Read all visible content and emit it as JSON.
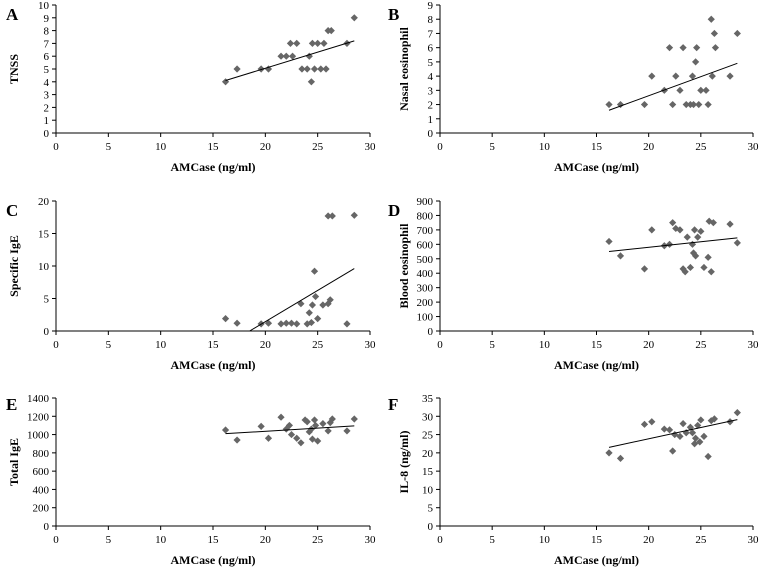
{
  "chart_data": [
    {
      "type": "scatter",
      "panel_letter": "A",
      "xlabel": "AMCase (ng/ml)",
      "ylabel": "TNSS",
      "xlim": [
        0,
        30
      ],
      "ylim": [
        0,
        10
      ],
      "xticks": [
        0,
        5,
        10,
        15,
        20,
        25,
        30
      ],
      "yticks": [
        0,
        1,
        2,
        3,
        4,
        5,
        6,
        7,
        8,
        9,
        10
      ],
      "grid": false,
      "marker_color": "#666666",
      "trendline": {
        "x": [
          16.2,
          28.5
        ],
        "y": [
          4.1,
          7.2
        ]
      },
      "points": [
        {
          "x": 16.2,
          "y": 4
        },
        {
          "x": 17.3,
          "y": 5
        },
        {
          "x": 19.6,
          "y": 5
        },
        {
          "x": 20.3,
          "y": 5
        },
        {
          "x": 21.5,
          "y": 6
        },
        {
          "x": 22.0,
          "y": 6
        },
        {
          "x": 22.4,
          "y": 7
        },
        {
          "x": 22.6,
          "y": 6
        },
        {
          "x": 23.0,
          "y": 7
        },
        {
          "x": 23.5,
          "y": 5
        },
        {
          "x": 24.0,
          "y": 5
        },
        {
          "x": 24.2,
          "y": 6
        },
        {
          "x": 24.4,
          "y": 4
        },
        {
          "x": 24.5,
          "y": 7
        },
        {
          "x": 24.7,
          "y": 5
        },
        {
          "x": 25.0,
          "y": 7
        },
        {
          "x": 25.3,
          "y": 5
        },
        {
          "x": 25.6,
          "y": 7
        },
        {
          "x": 25.8,
          "y": 5
        },
        {
          "x": 26.0,
          "y": 8
        },
        {
          "x": 26.3,
          "y": 8
        },
        {
          "x": 27.8,
          "y": 7
        },
        {
          "x": 28.5,
          "y": 9
        }
      ]
    },
    {
      "type": "scatter",
      "panel_letter": "B",
      "xlabel": "AMCase (ng/ml)",
      "ylabel": "Nasal eosinophil",
      "xlim": [
        0,
        30
      ],
      "ylim": [
        0,
        9
      ],
      "xticks": [
        0,
        5,
        10,
        15,
        20,
        25,
        30
      ],
      "yticks": [
        0,
        1,
        2,
        3,
        4,
        5,
        6,
        7,
        8,
        9
      ],
      "grid": false,
      "marker_color": "#666666",
      "trendline": {
        "x": [
          16.2,
          28.5
        ],
        "y": [
          1.6,
          4.9
        ]
      },
      "points": [
        {
          "x": 16.2,
          "y": 2
        },
        {
          "x": 17.3,
          "y": 2
        },
        {
          "x": 19.6,
          "y": 2
        },
        {
          "x": 20.3,
          "y": 4
        },
        {
          "x": 21.5,
          "y": 3
        },
        {
          "x": 22.0,
          "y": 6
        },
        {
          "x": 22.3,
          "y": 2
        },
        {
          "x": 22.6,
          "y": 4
        },
        {
          "x": 23.0,
          "y": 3
        },
        {
          "x": 23.3,
          "y": 6
        },
        {
          "x": 23.6,
          "y": 2
        },
        {
          "x": 24.0,
          "y": 2
        },
        {
          "x": 24.2,
          "y": 4
        },
        {
          "x": 24.3,
          "y": 2
        },
        {
          "x": 24.5,
          "y": 5
        },
        {
          "x": 24.6,
          "y": 6
        },
        {
          "x": 24.8,
          "y": 2
        },
        {
          "x": 25.0,
          "y": 3
        },
        {
          "x": 25.5,
          "y": 3
        },
        {
          "x": 25.7,
          "y": 2
        },
        {
          "x": 26.0,
          "y": 8
        },
        {
          "x": 26.1,
          "y": 4
        },
        {
          "x": 26.3,
          "y": 7
        },
        {
          "x": 26.4,
          "y": 6
        },
        {
          "x": 27.8,
          "y": 4
        },
        {
          "x": 28.5,
          "y": 7
        }
      ]
    },
    {
      "type": "scatter",
      "panel_letter": "C",
      "xlabel": "AMCase (ng/ml)",
      "ylabel": "Specific IgE",
      "xlim": [
        0,
        30
      ],
      "ylim": [
        0,
        20
      ],
      "xticks": [
        0,
        5,
        10,
        15,
        20,
        25,
        30
      ],
      "yticks": [
        0,
        5,
        10,
        15,
        20
      ],
      "grid": false,
      "marker_color": "#666666",
      "trendline": {
        "x": [
          18.5,
          28.5
        ],
        "y": [
          0,
          9.6
        ]
      },
      "points": [
        {
          "x": 16.2,
          "y": 1.9
        },
        {
          "x": 17.3,
          "y": 1.2
        },
        {
          "x": 19.6,
          "y": 1.1
        },
        {
          "x": 20.3,
          "y": 1.2
        },
        {
          "x": 21.5,
          "y": 1.1
        },
        {
          "x": 22.0,
          "y": 1.2
        },
        {
          "x": 22.5,
          "y": 1.2
        },
        {
          "x": 23.0,
          "y": 1.1
        },
        {
          "x": 23.4,
          "y": 4.2
        },
        {
          "x": 24.0,
          "y": 1.1
        },
        {
          "x": 24.2,
          "y": 2.8
        },
        {
          "x": 24.4,
          "y": 1.3
        },
        {
          "x": 24.5,
          "y": 4.0
        },
        {
          "x": 24.7,
          "y": 9.2
        },
        {
          "x": 24.8,
          "y": 5.3
        },
        {
          "x": 25.0,
          "y": 1.9
        },
        {
          "x": 25.5,
          "y": 4.0
        },
        {
          "x": 26.0,
          "y": 4.2
        },
        {
          "x": 26.2,
          "y": 4.8
        },
        {
          "x": 26.0,
          "y": 17.7
        },
        {
          "x": 26.4,
          "y": 17.7
        },
        {
          "x": 27.8,
          "y": 1.1
        },
        {
          "x": 28.5,
          "y": 17.8
        }
      ]
    },
    {
      "type": "scatter",
      "panel_letter": "D",
      "xlabel": "AMCase (ng/ml)",
      "ylabel": "Blood eosinophil",
      "xlim": [
        0,
        30
      ],
      "ylim": [
        0,
        900
      ],
      "xticks": [
        0,
        5,
        10,
        15,
        20,
        25,
        30
      ],
      "yticks": [
        0,
        100,
        200,
        300,
        400,
        500,
        600,
        700,
        800,
        900
      ],
      "grid": false,
      "marker_color": "#666666",
      "trendline": {
        "x": [
          16.2,
          28.5
        ],
        "y": [
          550,
          645
        ]
      },
      "points": [
        {
          "x": 16.2,
          "y": 620
        },
        {
          "x": 17.3,
          "y": 520
        },
        {
          "x": 19.6,
          "y": 430
        },
        {
          "x": 20.3,
          "y": 700
        },
        {
          "x": 21.5,
          "y": 590
        },
        {
          "x": 22.0,
          "y": 600
        },
        {
          "x": 22.3,
          "y": 750
        },
        {
          "x": 22.6,
          "y": 710
        },
        {
          "x": 23.0,
          "y": 700
        },
        {
          "x": 23.3,
          "y": 430
        },
        {
          "x": 23.5,
          "y": 410
        },
        {
          "x": 23.7,
          "y": 650
        },
        {
          "x": 24.0,
          "y": 440
        },
        {
          "x": 24.2,
          "y": 600
        },
        {
          "x": 24.3,
          "y": 540
        },
        {
          "x": 24.4,
          "y": 700
        },
        {
          "x": 24.5,
          "y": 520
        },
        {
          "x": 24.7,
          "y": 650
        },
        {
          "x": 25.0,
          "y": 690
        },
        {
          "x": 25.3,
          "y": 440
        },
        {
          "x": 25.7,
          "y": 510
        },
        {
          "x": 25.8,
          "y": 760
        },
        {
          "x": 26.0,
          "y": 410
        },
        {
          "x": 26.2,
          "y": 750
        },
        {
          "x": 27.8,
          "y": 740
        },
        {
          "x": 28.5,
          "y": 610
        }
      ]
    },
    {
      "type": "scatter",
      "panel_letter": "E",
      "xlabel": "AMCase (ng/ml)",
      "ylabel": "Total IgE",
      "xlim": [
        0,
        30
      ],
      "ylim": [
        0,
        1400
      ],
      "xticks": [
        0,
        5,
        10,
        15,
        20,
        25,
        30
      ],
      "yticks": [
        0,
        200,
        400,
        600,
        800,
        1000,
        1200,
        1400
      ],
      "grid": false,
      "marker_color": "#666666",
      "trendline": {
        "x": [
          16.2,
          28.5
        ],
        "y": [
          1010,
          1095
        ]
      },
      "points": [
        {
          "x": 16.2,
          "y": 1050
        },
        {
          "x": 17.3,
          "y": 940
        },
        {
          "x": 19.6,
          "y": 1090
        },
        {
          "x": 20.3,
          "y": 960
        },
        {
          "x": 21.5,
          "y": 1190
        },
        {
          "x": 22.0,
          "y": 1060
        },
        {
          "x": 22.3,
          "y": 1100
        },
        {
          "x": 22.5,
          "y": 1000
        },
        {
          "x": 23.0,
          "y": 960
        },
        {
          "x": 23.4,
          "y": 910
        },
        {
          "x": 23.8,
          "y": 1160
        },
        {
          "x": 24.0,
          "y": 1140
        },
        {
          "x": 24.2,
          "y": 1030
        },
        {
          "x": 24.4,
          "y": 1060
        },
        {
          "x": 24.5,
          "y": 950
        },
        {
          "x": 24.7,
          "y": 1160
        },
        {
          "x": 24.8,
          "y": 1100
        },
        {
          "x": 25.0,
          "y": 930
        },
        {
          "x": 25.5,
          "y": 1120
        },
        {
          "x": 26.0,
          "y": 1040
        },
        {
          "x": 26.2,
          "y": 1130
        },
        {
          "x": 26.4,
          "y": 1170
        },
        {
          "x": 27.8,
          "y": 1040
        },
        {
          "x": 28.5,
          "y": 1170
        }
      ]
    },
    {
      "type": "scatter",
      "panel_letter": "F",
      "xlabel": "AMCase (ng/ml)",
      "ylabel": "IL-8 (ng/ml)",
      "xlim": [
        0,
        30
      ],
      "ylim": [
        0,
        35
      ],
      "xticks": [
        0,
        5,
        10,
        15,
        20,
        25,
        30
      ],
      "yticks": [
        0,
        5,
        10,
        15,
        20,
        25,
        30,
        35
      ],
      "grid": false,
      "marker_color": "#666666",
      "trendline": {
        "x": [
          16.2,
          28.5
        ],
        "y": [
          21.5,
          29.1
        ]
      },
      "points": [
        {
          "x": 16.2,
          "y": 20.0
        },
        {
          "x": 17.3,
          "y": 18.5
        },
        {
          "x": 19.6,
          "y": 27.8
        },
        {
          "x": 20.3,
          "y": 28.5
        },
        {
          "x": 21.5,
          "y": 26.5
        },
        {
          "x": 22.0,
          "y": 26.3
        },
        {
          "x": 22.3,
          "y": 20.5
        },
        {
          "x": 22.5,
          "y": 25.0
        },
        {
          "x": 23.0,
          "y": 24.5
        },
        {
          "x": 23.3,
          "y": 28.0
        },
        {
          "x": 23.6,
          "y": 25.5
        },
        {
          "x": 24.0,
          "y": 27.0
        },
        {
          "x": 24.2,
          "y": 25.5
        },
        {
          "x": 24.4,
          "y": 22.5
        },
        {
          "x": 24.5,
          "y": 24.0
        },
        {
          "x": 24.7,
          "y": 27.5
        },
        {
          "x": 24.9,
          "y": 23.0
        },
        {
          "x": 25.0,
          "y": 29.0
        },
        {
          "x": 25.3,
          "y": 24.5
        },
        {
          "x": 25.7,
          "y": 19.0
        },
        {
          "x": 26.0,
          "y": 28.8
        },
        {
          "x": 26.3,
          "y": 29.3
        },
        {
          "x": 27.8,
          "y": 28.5
        },
        {
          "x": 28.5,
          "y": 31.0
        }
      ]
    }
  ]
}
